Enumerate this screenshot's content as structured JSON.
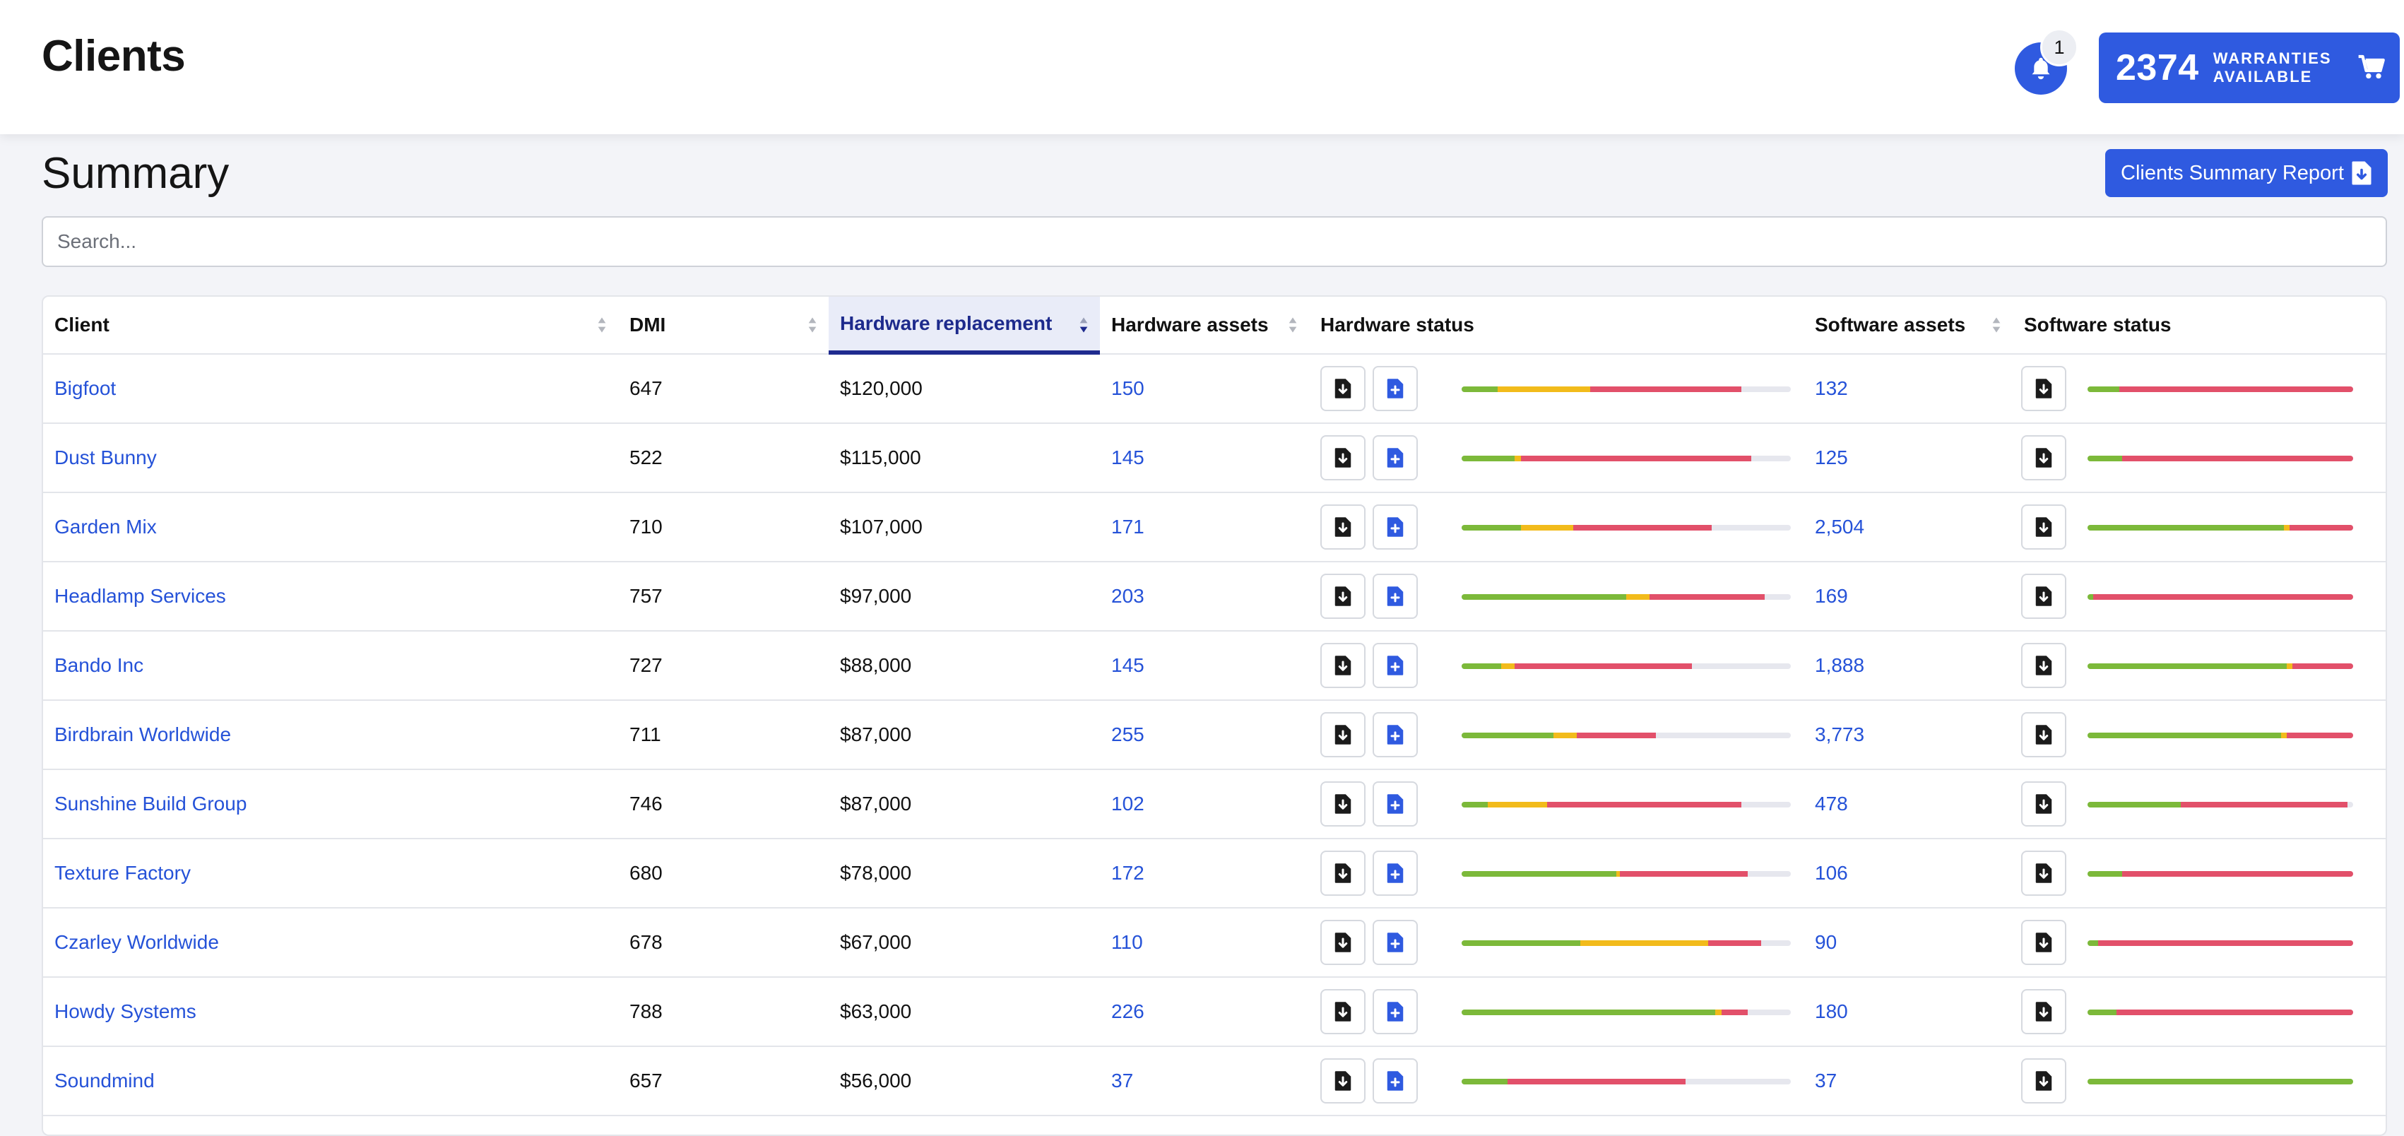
{
  "header": {
    "title": "Clients",
    "notification_count": "1",
    "warranties_count": "2374",
    "warranties_label": "WARRANTIES AVAILABLE"
  },
  "summary": {
    "title": "Summary",
    "report_button": "Clients Summary Report",
    "search_placeholder": "Search..."
  },
  "table": {
    "columns": [
      "Client",
      "DMI",
      "Hardware replacement",
      "Hardware assets",
      "Hardware status",
      "Software assets",
      "Software status"
    ],
    "sorted_column": "Hardware replacement",
    "rows": [
      {
        "client": "Bigfoot",
        "dmi": "647",
        "hw_replacement": "$120,000",
        "hw_assets": "150",
        "sw_assets": "132",
        "hw_status": [
          0.11,
          0.28,
          0.46
        ],
        "sw_status": [
          0.12,
          0.0,
          0.88
        ]
      },
      {
        "client": "Dust Bunny",
        "dmi": "522",
        "hw_replacement": "$115,000",
        "hw_assets": "145",
        "sw_assets": "125",
        "hw_status": [
          0.16,
          0.02,
          0.7
        ],
        "sw_status": [
          0.13,
          0.0,
          0.87
        ]
      },
      {
        "client": "Garden Mix",
        "dmi": "710",
        "hw_replacement": "$107,000",
        "hw_assets": "171",
        "sw_assets": "2,504",
        "hw_status": [
          0.18,
          0.16,
          0.42
        ],
        "sw_status": [
          0.74,
          0.02,
          0.24
        ]
      },
      {
        "client": "Headlamp Services",
        "dmi": "757",
        "hw_replacement": "$97,000",
        "hw_assets": "203",
        "sw_assets": "169",
        "hw_status": [
          0.5,
          0.07,
          0.35
        ],
        "sw_status": [
          0.02,
          0.0,
          0.98
        ]
      },
      {
        "client": "Bando Inc",
        "dmi": "727",
        "hw_replacement": "$88,000",
        "hw_assets": "145",
        "sw_assets": "1,888",
        "hw_status": [
          0.12,
          0.04,
          0.54
        ],
        "sw_status": [
          0.75,
          0.02,
          0.23
        ]
      },
      {
        "client": "Birdbrain Worldwide",
        "dmi": "711",
        "hw_replacement": "$87,000",
        "hw_assets": "255",
        "sw_assets": "3,773",
        "hw_status": [
          0.28,
          0.07,
          0.24
        ],
        "sw_status": [
          0.73,
          0.02,
          0.25
        ]
      },
      {
        "client": "Sunshine Build Group",
        "dmi": "746",
        "hw_replacement": "$87,000",
        "hw_assets": "102",
        "sw_assets": "478",
        "hw_status": [
          0.08,
          0.18,
          0.59
        ],
        "sw_status": [
          0.35,
          0.0,
          0.63
        ]
      },
      {
        "client": "Texture Factory",
        "dmi": "680",
        "hw_replacement": "$78,000",
        "hw_assets": "172",
        "sw_assets": "106",
        "hw_status": [
          0.47,
          0.01,
          0.39
        ],
        "sw_status": [
          0.13,
          0.0,
          0.87
        ]
      },
      {
        "client": "Czarley Worldwide",
        "dmi": "678",
        "hw_replacement": "$67,000",
        "hw_assets": "110",
        "sw_assets": "90",
        "hw_status": [
          0.36,
          0.39,
          0.16
        ],
        "sw_status": [
          0.04,
          0.0,
          0.96
        ]
      },
      {
        "client": "Howdy Systems",
        "dmi": "788",
        "hw_replacement": "$63,000",
        "hw_assets": "226",
        "sw_assets": "180",
        "hw_status": [
          0.77,
          0.02,
          0.08
        ],
        "sw_status": [
          0.11,
          0.0,
          0.89
        ]
      },
      {
        "client": "Soundmind",
        "dmi": "657",
        "hw_replacement": "$56,000",
        "hw_assets": "37",
        "sw_assets": "37",
        "hw_status": [
          0.14,
          0.0,
          0.54
        ],
        "sw_status": [
          1.0,
          0.0,
          0.0
        ]
      }
    ]
  },
  "colors": {
    "accent": "#2f5ae0",
    "status_good": "#7cb93a",
    "status_warn": "#f2bb1b",
    "status_bad": "#e2506a"
  }
}
